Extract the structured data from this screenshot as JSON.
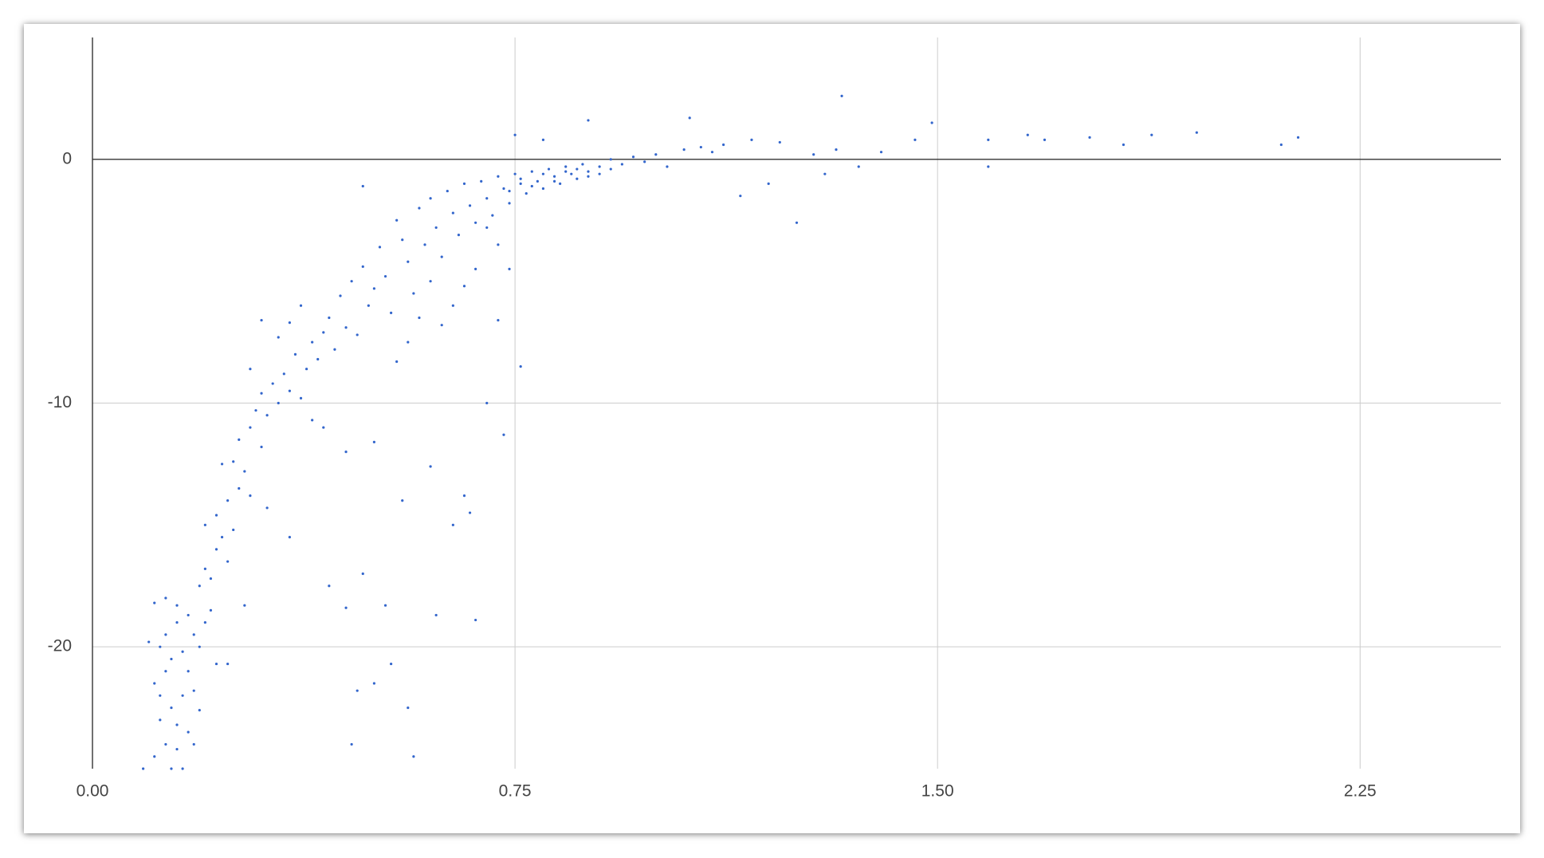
{
  "chart_data": {
    "type": "scatter",
    "x": [
      0.09,
      0.11,
      0.12,
      0.13,
      0.14,
      0.15,
      0.16,
      0.12,
      0.11,
      0.13,
      0.14,
      0.15,
      0.16,
      0.17,
      0.18,
      0.12,
      0.13,
      0.14,
      0.15,
      0.16,
      0.17,
      0.18,
      0.19,
      0.1,
      0.11,
      0.13,
      0.15,
      0.17,
      0.18,
      0.19,
      0.2,
      0.21,
      0.22,
      0.19,
      0.2,
      0.21,
      0.22,
      0.23,
      0.24,
      0.2,
      0.22,
      0.24,
      0.25,
      0.26,
      0.23,
      0.25,
      0.27,
      0.28,
      0.26,
      0.28,
      0.29,
      0.3,
      0.31,
      0.3,
      0.32,
      0.33,
      0.34,
      0.35,
      0.36,
      0.37,
      0.33,
      0.35,
      0.37,
      0.38,
      0.39,
      0.4,
      0.41,
      0.42,
      0.43,
      0.44,
      0.45,
      0.46,
      0.47,
      0.48,
      0.49,
      0.5,
      0.51,
      0.52,
      0.53,
      0.54,
      0.55,
      0.56,
      0.57,
      0.58,
      0.59,
      0.6,
      0.61,
      0.62,
      0.63,
      0.64,
      0.65,
      0.66,
      0.67,
      0.68,
      0.69,
      0.7,
      0.71,
      0.72,
      0.73,
      0.74,
      0.75,
      0.76,
      0.77,
      0.78,
      0.79,
      0.8,
      0.81,
      0.82,
      0.83,
      0.84,
      0.85,
      0.86,
      0.87,
      0.88,
      0.9,
      0.92,
      0.94,
      0.96,
      0.98,
      1.0,
      1.02,
      1.05,
      1.08,
      1.1,
      1.12,
      1.15,
      1.17,
      1.2,
      1.22,
      1.25,
      1.28,
      1.3,
      1.32,
      1.33,
      1.36,
      1.4,
      1.46,
      1.49,
      1.59,
      1.59,
      1.66,
      1.69,
      1.77,
      1.83,
      1.88,
      1.96,
      2.11,
      2.14,
      1.06,
      0.88,
      0.75,
      0.8,
      0.42,
      0.45,
      0.48,
      0.52,
      0.47,
      0.5,
      0.53,
      0.56,
      0.57,
      0.46,
      0.61,
      0.68,
      0.64,
      0.67,
      0.6,
      0.55,
      0.5,
      0.45,
      0.41,
      0.39,
      0.66,
      0.7,
      0.73,
      0.76,
      0.72,
      0.74,
      0.48,
      0.3,
      0.28,
      0.31,
      0.35,
      0.27,
      0.24,
      0.74,
      0.76,
      0.78,
      0.8,
      0.82,
      0.84,
      0.86,
      0.88,
      0.9,
      0.92,
      0.7,
      0.72,
      0.68,
      0.66,
      0.64,
      0.62,
      0.6,
      0.58,
      0.56,
      0.54
    ],
    "values": [
      -25,
      -24.5,
      -23,
      -24,
      -25,
      -24.2,
      -25,
      -22,
      -21.5,
      -21,
      -22.5,
      -23.2,
      -22,
      -23.5,
      -24,
      -20,
      -19.5,
      -20.5,
      -19,
      -20.2,
      -21,
      -21.8,
      -22.6,
      -19.8,
      -18.2,
      -18,
      -18.3,
      -18.7,
      -19.5,
      -20,
      -19,
      -18.5,
      -20.7,
      -17.5,
      -16.8,
      -17.2,
      -16,
      -15.5,
      -16.5,
      -15,
      -14.6,
      -14,
      -15.2,
      -13.5,
      -12.5,
      -12.4,
      -12.8,
      -13.8,
      -11.5,
      -11,
      -10.3,
      -11.8,
      -10.5,
      -9.6,
      -9.2,
      -10,
      -8.8,
      -9.5,
      -8,
      -9.8,
      -7.3,
      -6.7,
      -6,
      -8.6,
      -7.5,
      -8.2,
      -7.1,
      -6.5,
      -7.8,
      -5.6,
      -6.9,
      -5,
      -7.2,
      -4.4,
      -6,
      -5.3,
      -3.6,
      -4.8,
      -6.3,
      -2.5,
      -3.3,
      -4.2,
      -5.5,
      -2,
      -3.5,
      -1.6,
      -2.8,
      -4,
      -1.3,
      -2.2,
      -3.1,
      -1,
      -1.9,
      -2.6,
      -0.9,
      -1.6,
      -2.3,
      -0.7,
      -1.2,
      -1.8,
      -0.6,
      -1,
      -1.4,
      -0.5,
      -0.9,
      -1.2,
      -0.4,
      -0.7,
      -1,
      -0.3,
      -0.6,
      -0.8,
      -0.2,
      -0.5,
      -0.3,
      0,
      -0.2,
      0.1,
      -0.1,
      0.2,
      -0.3,
      0.4,
      0.5,
      0.3,
      0.6,
      -1.5,
      0.8,
      -1,
      0.7,
      -2.6,
      0.2,
      -0.6,
      0.4,
      2.6,
      -0.3,
      0.3,
      0.8,
      1.5,
      0.8,
      -0.3,
      1,
      0.8,
      0.9,
      0.6,
      1,
      1.1,
      0.6,
      0.9,
      1.7,
      1.6,
      1,
      0.8,
      -17.5,
      -18.4,
      -17,
      -18.3,
      -21.8,
      -21.5,
      -20.7,
      -22.5,
      -24.5,
      -24,
      -18.7,
      -18.9,
      -15,
      -14.5,
      -12.6,
      -14,
      -11.6,
      -12,
      -11,
      -10.7,
      -13.8,
      -10,
      -11.3,
      -8.5,
      -6.6,
      -4.5,
      -1.1,
      -6.6,
      -8.6,
      -14.3,
      -15.5,
      -18.3,
      -20.7,
      -1.3,
      -0.8,
      -1.1,
      -0.6,
      -0.9,
      -0.5,
      -0.4,
      -0.7,
      -0.6,
      -0.4,
      -2.8,
      -3.5,
      -4.5,
      -5.2,
      -6,
      -6.8,
      -5,
      -6.5,
      -7.5,
      -8.3
    ],
    "color": "#3366cc",
    "xlim": [
      0,
      2.5
    ],
    "xticks": [
      {
        "value": 0,
        "label": "0.00"
      },
      0.75,
      {
        "value": 1.5,
        "label": "1.50"
      },
      2.25
    ],
    "ylim": [
      -25,
      5
    ],
    "yticks": [
      -20,
      -10,
      0
    ],
    "grid": true
  }
}
